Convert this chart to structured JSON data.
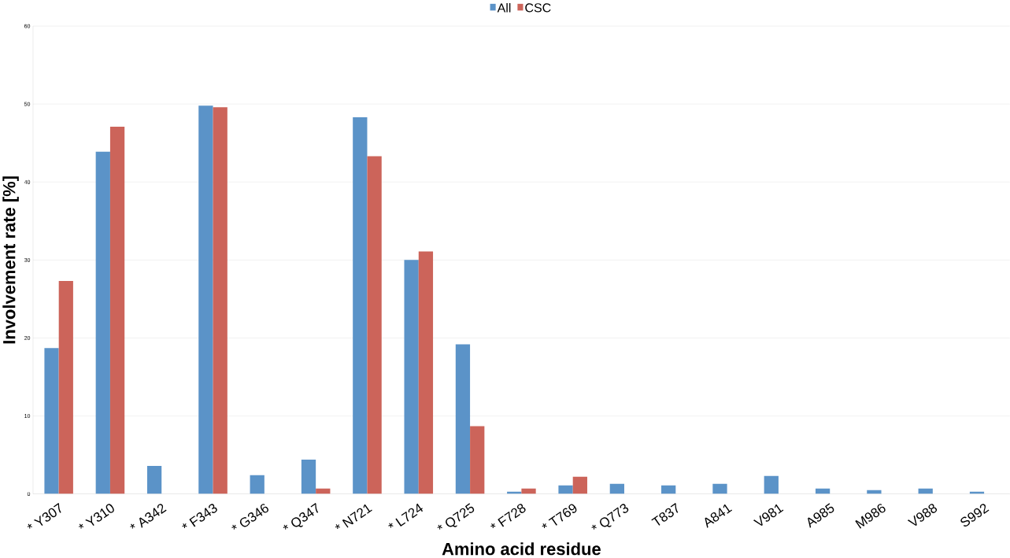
{
  "chart_data": {
    "type": "bar",
    "xlabel": "Amino acid residue",
    "ylabel": "Involvement rate [%]",
    "categories": [
      "* Y307",
      "* Y310",
      "* A342",
      "* F343",
      "* G346",
      "* Q347",
      "* N721",
      "* L724",
      "* Q725",
      "* F728",
      "* T769",
      "* Q773",
      "T837",
      "A841",
      "V981",
      "A985",
      "M986",
      "V988",
      "S992"
    ],
    "series": [
      {
        "name": "All",
        "color": "#5b93c8",
        "values": [
          18.7,
          43.9,
          3.6,
          49.8,
          2.4,
          4.4,
          48.3,
          30.0,
          19.2,
          0.3,
          1.1,
          1.3,
          1.1,
          1.3,
          2.3,
          0.7,
          0.5,
          0.7,
          0.3
        ]
      },
      {
        "name": "CSC",
        "color": "#cc645a",
        "values": [
          27.3,
          47.1,
          null,
          49.6,
          null,
          0.7,
          43.3,
          31.1,
          8.7,
          0.7,
          2.2,
          null,
          null,
          null,
          null,
          null,
          null,
          null,
          null
        ]
      }
    ],
    "ylim": [
      0,
      60
    ],
    "yticks": [
      0,
      10,
      20,
      30,
      40,
      50,
      60
    ],
    "grid": "y",
    "legend": "top"
  }
}
